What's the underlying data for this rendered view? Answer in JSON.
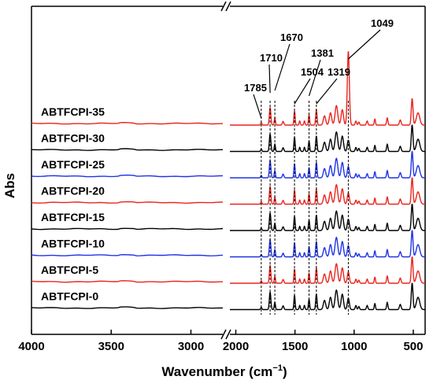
{
  "chart_data": {
    "type": "line",
    "title": "",
    "xlabel": "Wavenumber (cm",
    "xlabel_sup": "−1",
    "xlabel_close": ")",
    "ylabel": "Abs",
    "x_reversed": true,
    "x_break": true,
    "x_segments": [
      {
        "xlim": [
          4000,
          2800
        ],
        "ticks": [
          4000,
          3500,
          3000
        ]
      },
      {
        "xlim": [
          2050,
          400
        ],
        "ticks": [
          2000,
          1500,
          1000,
          500
        ]
      }
    ],
    "tick_labels": [
      "4000",
      "3500",
      "3000",
      "2000",
      "1500",
      "1000",
      "500"
    ],
    "grid": false,
    "legend": "none",
    "colors": {
      "black": "#000000",
      "red": "#e8251f",
      "blue": "#1f33e6"
    },
    "series": [
      {
        "name": "ABTFCPI-35",
        "color": "#e8251f"
      },
      {
        "name": "ABTFCPI-30",
        "color": "#000000"
      },
      {
        "name": "ABTFCPI-25",
        "color": "#1f33e6"
      },
      {
        "name": "ABTFCPI-20",
        "color": "#e8251f"
      },
      {
        "name": "ABTFCPI-15",
        "color": "#000000"
      },
      {
        "name": "ABTFCPI-10",
        "color": "#1f33e6"
      },
      {
        "name": "ABTFCPI-5",
        "color": "#e8251f"
      },
      {
        "name": "ABTFCPI-0",
        "color": "#000000"
      }
    ],
    "annotations": [
      {
        "label": "1785",
        "x": 1785
      },
      {
        "label": "1710",
        "x": 1710
      },
      {
        "label": "1670",
        "x": 1670
      },
      {
        "label": "1504",
        "x": 1504
      },
      {
        "label": "1381",
        "x": 1381
      },
      {
        "label": "1319",
        "x": 1319
      },
      {
        "label": "1049",
        "x": 1049
      }
    ],
    "peaks": [
      {
        "x": 1785,
        "h": 0.12,
        "w": 7
      },
      {
        "x": 1710,
        "h": 0.85,
        "w": 9
      },
      {
        "x": 1670,
        "h": 0.35,
        "w": 7
      },
      {
        "x": 1600,
        "h": 0.18,
        "w": 9
      },
      {
        "x": 1504,
        "h": 0.7,
        "w": 7
      },
      {
        "x": 1460,
        "h": 0.2,
        "w": 7
      },
      {
        "x": 1420,
        "h": 0.2,
        "w": 7
      },
      {
        "x": 1381,
        "h": 0.5,
        "w": 7
      },
      {
        "x": 1319,
        "h": 0.75,
        "w": 8
      },
      {
        "x": 1250,
        "h": 0.45,
        "w": 14
      },
      {
        "x": 1200,
        "h": 0.6,
        "w": 14
      },
      {
        "x": 1150,
        "h": 0.95,
        "w": 16
      },
      {
        "x": 1100,
        "h": 0.75,
        "w": 14
      },
      {
        "x": 1049,
        "h": 0.55,
        "w": 12
      },
      {
        "x": 985,
        "h": 0.2,
        "w": 8
      },
      {
        "x": 960,
        "h": 0.15,
        "w": 8
      },
      {
        "x": 890,
        "h": 0.2,
        "w": 8
      },
      {
        "x": 825,
        "h": 0.3,
        "w": 7
      },
      {
        "x": 720,
        "h": 0.35,
        "w": 8
      },
      {
        "x": 610,
        "h": 0.25,
        "w": 10
      },
      {
        "x": 510,
        "h": 1.3,
        "w": 10
      },
      {
        "x": 460,
        "h": 0.6,
        "w": 20
      }
    ]
  }
}
